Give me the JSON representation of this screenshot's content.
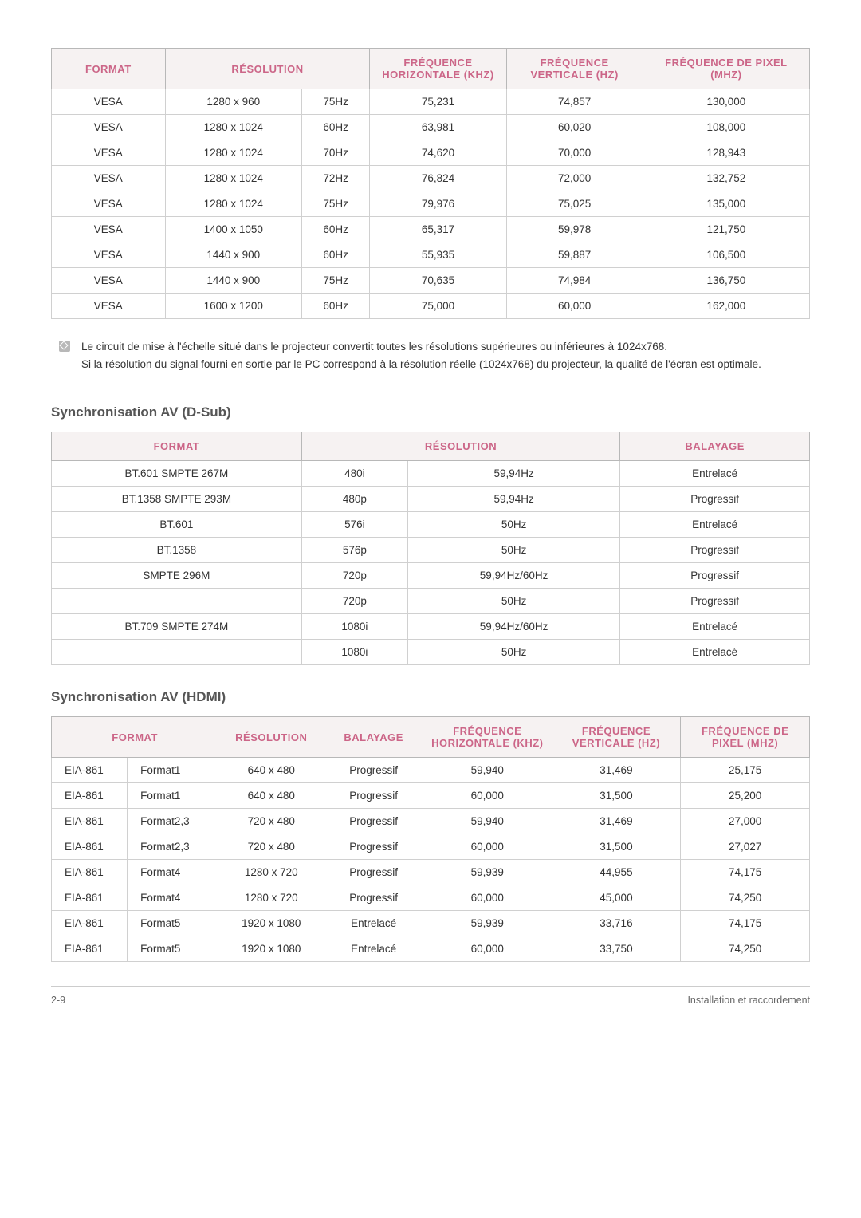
{
  "colors": {
    "header_bg": "#f6f2f2",
    "header_text": "#cc6688",
    "border_outer": "#b8b8b8",
    "border_inner": "#d0d0d0",
    "body_text": "#333333",
    "section_title": "#555555",
    "footer_text": "#666666"
  },
  "table1": {
    "headers": [
      "FORMAT",
      "RÉSOLUTION",
      "FRÉQUENCE HORIZONTALE (KHZ)",
      "FRÉQUENCE VERTICALE (HZ)",
      "FRÉQUENCE DE PIXEL (MHZ)"
    ],
    "col_widths_pct": [
      15,
      18,
      9,
      18,
      18,
      22
    ],
    "rows": [
      [
        "VESA",
        "1280 x 960",
        "75Hz",
        "75,231",
        "74,857",
        "130,000"
      ],
      [
        "VESA",
        "1280 x 1024",
        "60Hz",
        "63,981",
        "60,020",
        "108,000"
      ],
      [
        "VESA",
        "1280 x 1024",
        "70Hz",
        "74,620",
        "70,000",
        "128,943"
      ],
      [
        "VESA",
        "1280 x 1024",
        "72Hz",
        "76,824",
        "72,000",
        "132,752"
      ],
      [
        "VESA",
        "1280 x 1024",
        "75Hz",
        "79,976",
        "75,025",
        "135,000"
      ],
      [
        "VESA",
        "1400 x 1050",
        "60Hz",
        "65,317",
        "59,978",
        "121,750"
      ],
      [
        "VESA",
        "1440 x 900",
        "60Hz",
        "55,935",
        "59,887",
        "106,500"
      ],
      [
        "VESA",
        "1440 x 900",
        "75Hz",
        "70,635",
        "74,984",
        "136,750"
      ],
      [
        "VESA",
        "1600 x 1200",
        "60Hz",
        "75,000",
        "60,000",
        "162,000"
      ]
    ]
  },
  "note": {
    "line1": "Le circuit de mise à l'échelle situé dans le projecteur convertit toutes les résolutions supérieures ou inférieures à 1024x768.",
    "line2": "Si la résolution du signal fourni en sortie par le PC correspond à la résolution réelle (1024x768) du projecteur, la qualité de l'écran est optimale."
  },
  "section2": {
    "title": "Synchronisation AV (D-Sub)",
    "headers": [
      "FORMAT",
      "RÉSOLUTION",
      "BALAYAGE"
    ],
    "col_widths_pct": [
      33,
      14,
      28,
      25
    ],
    "rows": [
      [
        "BT.601 SMPTE 267M",
        "480i",
        "59,94Hz",
        "Entrelacé"
      ],
      [
        "BT.1358 SMPTE 293M",
        "480p",
        "59,94Hz",
        "Progressif"
      ],
      [
        "BT.601",
        "576i",
        "50Hz",
        "Entrelacé"
      ],
      [
        "BT.1358",
        "576p",
        "50Hz",
        "Progressif"
      ],
      [
        "SMPTE 296M",
        "720p",
        "59,94Hz/60Hz",
        "Progressif"
      ],
      [
        "",
        "720p",
        "50Hz",
        "Progressif"
      ],
      [
        "BT.709 SMPTE 274M",
        "1080i",
        "59,94Hz/60Hz",
        "Entrelacé"
      ],
      [
        "",
        "1080i",
        "50Hz",
        "Entrelacé"
      ]
    ]
  },
  "section3": {
    "title": "Synchronisation AV (HDMI)",
    "headers": [
      "FORMAT",
      "RÉSOLUTION",
      "BALAYAGE",
      "FRÉQUENCE HORIZONTALE (KHZ)",
      "FRÉQUENCE VERTICALE (HZ)",
      "FRÉQUENCE DE PIXEL (MHZ)"
    ],
    "col_widths_pct": [
      10,
      12,
      14,
      13,
      17,
      17,
      17
    ],
    "rows": [
      [
        "EIA-861",
        "Format1",
        "640 x 480",
        "Progressif",
        "59,940",
        "31,469",
        "25,175"
      ],
      [
        "EIA-861",
        "Format1",
        "640 x 480",
        "Progressif",
        "60,000",
        "31,500",
        "25,200"
      ],
      [
        "EIA-861",
        "Format2,3",
        "720 x 480",
        "Progressif",
        "59,940",
        "31,469",
        "27,000"
      ],
      [
        "EIA-861",
        "Format2,3",
        "720 x 480",
        "Progressif",
        "60,000",
        "31,500",
        "27,027"
      ],
      [
        "EIA-861",
        "Format4",
        "1280 x 720",
        "Progressif",
        "59,939",
        "44,955",
        "74,175"
      ],
      [
        "EIA-861",
        "Format4",
        "1280 x 720",
        "Progressif",
        "60,000",
        "45,000",
        "74,250"
      ],
      [
        "EIA-861",
        "Format5",
        "1920 x 1080",
        "Entrelacé",
        "59,939",
        "33,716",
        "74,175"
      ],
      [
        "EIA-861",
        "Format5",
        "1920 x 1080",
        "Entrelacé",
        "60,000",
        "33,750",
        "74,250"
      ]
    ]
  },
  "footer": {
    "left": "2-9",
    "right": "Installation et raccordement"
  }
}
